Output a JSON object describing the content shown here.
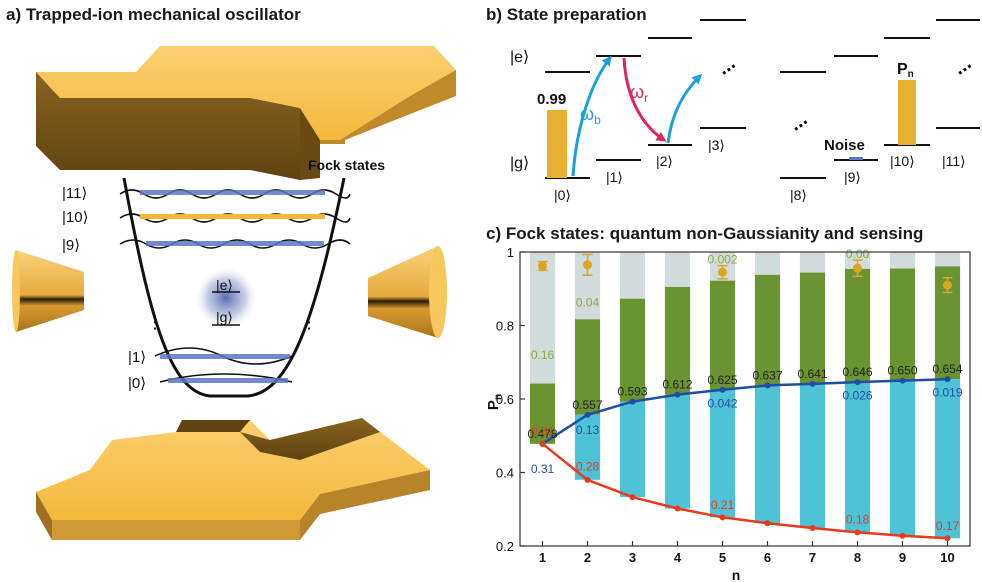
{
  "panel_a": {
    "title": "a) Trapped-ion mechanical oscillator",
    "fock_label": "Fock states",
    "levels": [
      {
        "label": "|11⟩",
        "color": "#5a78c0"
      },
      {
        "label": "|10⟩",
        "color": "#f0b830"
      },
      {
        "label": "|9⟩",
        "color": "#5a78c0"
      },
      {
        "label": "|1⟩",
        "color": "#5a78c0"
      },
      {
        "label": "|0⟩",
        "color": "#5a78c0"
      }
    ],
    "ion_e": "|e⟩",
    "ion_g": "|g⟩",
    "dots": "⋮"
  },
  "panel_b": {
    "title": "b) State preparation",
    "e_label": "|e⟩",
    "g_label": "|g⟩",
    "bar_value_label": "0.99",
    "omega_b": "ω",
    "omega_b_sub": "b",
    "omega_r": "ω",
    "omega_r_sub": "r",
    "noise_label": "Noise",
    "pn_label": "P",
    "pn_sub": "n",
    "ellipsis": "...",
    "states": [
      "|0⟩",
      "|1⟩",
      "|2⟩",
      "|3⟩",
      "|8⟩",
      "|9⟩",
      "|10⟩",
      "|11⟩"
    ],
    "colors": {
      "blue_arrow": "#1aa0dc",
      "red_arrow": "#e0245e",
      "bar": "#e8b030",
      "noise": "#5a78c0"
    }
  },
  "chart_data": {
    "type": "bar",
    "title": "c) Fock states: quantum non-Gaussianity and sensing",
    "xlabel": "n",
    "ylabel": "P",
    "ylabel_sub": "n",
    "ylim": [
      0.2,
      1.0
    ],
    "categories": [
      "1",
      "2",
      "3",
      "4",
      "5",
      "6",
      "7",
      "8",
      "9",
      "10"
    ],
    "yticks": [
      "0.2",
      "0.4",
      "0.6",
      "0.8",
      "1"
    ],
    "bar_top": [
      1,
      1,
      1,
      1,
      1,
      1,
      1,
      1,
      1,
      1
    ],
    "green_top": [
      0.642,
      0.817,
      0.873,
      0.905,
      0.922,
      0.938,
      0.944,
      0.954,
      0.955,
      0.961
    ],
    "cyan_top": [
      0.478,
      0.557,
      0.593,
      0.612,
      0.625,
      0.637,
      0.641,
      0.646,
      0.65,
      0.654
    ],
    "cyan_bottom": [
      0.478,
      0.38,
      0.333,
      0.302,
      0.278,
      0.262,
      0.249,
      0.237,
      0.228,
      0.221
    ],
    "blue_line": [
      0.478,
      0.557,
      0.593,
      0.612,
      0.625,
      0.637,
      0.641,
      0.646,
      0.65,
      0.654
    ],
    "red_line": [
      0.478,
      0.38,
      0.333,
      0.302,
      0.278,
      0.262,
      0.249,
      0.237,
      0.228,
      0.221
    ],
    "points": [
      {
        "x": 1,
        "y": 0.962,
        "err": 0.012
      },
      {
        "x": 2,
        "y": 0.965,
        "err": 0.028
      },
      {
        "x": 5,
        "y": 0.945,
        "err": 0.018
      },
      {
        "x": 8,
        "y": 0.956,
        "err": 0.022
      },
      {
        "x": 10,
        "y": 0.91,
        "err": 0.02
      }
    ],
    "labels_black": [
      {
        "x": 1,
        "y": 0.478,
        "text": "0.478"
      },
      {
        "x": 2,
        "y": 0.557,
        "text": "0.557"
      },
      {
        "x": 3,
        "y": 0.593,
        "text": "0.593"
      },
      {
        "x": 4,
        "y": 0.612,
        "text": "0.612"
      },
      {
        "x": 5,
        "y": 0.625,
        "text": "0.625"
      },
      {
        "x": 6,
        "y": 0.637,
        "text": "0.637"
      },
      {
        "x": 7,
        "y": 0.641,
        "text": "0.641"
      },
      {
        "x": 8,
        "y": 0.646,
        "text": "0.646"
      },
      {
        "x": 9,
        "y": 0.65,
        "text": "0.650"
      },
      {
        "x": 10,
        "y": 0.654,
        "text": "0.654"
      }
    ],
    "labels_green": [
      {
        "x": 1,
        "y": 0.72,
        "text": "0.16"
      },
      {
        "x": 2,
        "y": 0.862,
        "text": "0.04"
      },
      {
        "x": 5,
        "y": 0.98,
        "text": "0.002"
      },
      {
        "x": 8,
        "y": 0.995,
        "text": "0.00"
      }
    ],
    "labels_blue": [
      {
        "x": 1,
        "y": 0.41,
        "text": "0.31"
      },
      {
        "x": 2,
        "y": 0.515,
        "text": "0.13"
      },
      {
        "x": 5,
        "y": 0.588,
        "text": "0.042"
      },
      {
        "x": 8,
        "y": 0.61,
        "text": "0.026"
      },
      {
        "x": 10,
        "y": 0.618,
        "text": "0.019"
      }
    ],
    "labels_red": [
      {
        "x": 1,
        "y": 0.513,
        "text": "0.31"
      },
      {
        "x": 2,
        "y": 0.416,
        "text": "0.28"
      },
      {
        "x": 5,
        "y": 0.312,
        "text": "0.21"
      },
      {
        "x": 8,
        "y": 0.272,
        "text": "0.18"
      },
      {
        "x": 10,
        "y": 0.255,
        "text": "0.17"
      }
    ],
    "colors": {
      "gray": "#d3dcdc",
      "green": "#6a9432",
      "cyan": "#4ec3d8",
      "blue": "#1f4ea3",
      "red": "#e83a1c",
      "gold": "#daa520",
      "green_text": "#8aa840"
    }
  }
}
